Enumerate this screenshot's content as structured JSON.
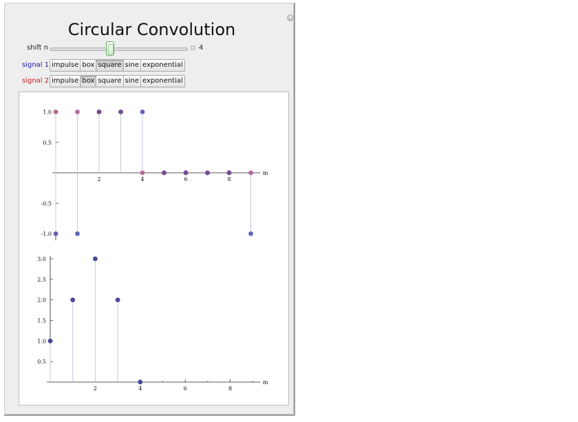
{
  "title": "Circular Convolution",
  "controls": {
    "shift_label": "shift n",
    "shift_value": "4",
    "shift_position": 0.44,
    "signal1_label": "signal 1",
    "signal2_label": "signal 2",
    "signal_options": [
      "impulse",
      "box",
      "square",
      "sine",
      "exponential"
    ],
    "signal1_selected": "square",
    "signal2_selected": "box"
  },
  "colors": {
    "signal1": "#1a1aa8",
    "signal2": "#c02020",
    "points_signal1": "#5c5cb4",
    "points_signal2": "#b46496",
    "points_overlap": "#7a4a8e",
    "points_result": "#3e3e96",
    "stem": "#c8c8dc"
  },
  "chart_data": [
    {
      "type": "scatter",
      "title": "",
      "xlabel": "m",
      "ylabel": "",
      "xlim": [
        0,
        9.4
      ],
      "ylim": [
        -1.0,
        1.0
      ],
      "xticks": [
        "2",
        "4",
        "6",
        "8"
      ],
      "yticks": [
        "1.0",
        "0.5",
        "-0.5",
        "-1.0"
      ],
      "series": [
        {
          "values": [
            [
              0,
              -1
            ],
            [
              1,
              -1
            ],
            [
              2,
              1
            ],
            [
              3,
              1
            ],
            [
              4,
              1
            ],
            [
              5,
              0
            ],
            [
              6,
              0
            ],
            [
              7,
              0
            ],
            [
              8,
              0
            ],
            [
              9,
              -1
            ]
          ]
        },
        {
          "values": [
            [
              0,
              1
            ],
            [
              1,
              1
            ],
            [
              2,
              1
            ],
            [
              3,
              1
            ],
            [
              4,
              0
            ],
            [
              5,
              0
            ],
            [
              6,
              0
            ],
            [
              7,
              0
            ],
            [
              8,
              0
            ],
            [
              9,
              0
            ]
          ]
        }
      ]
    },
    {
      "type": "scatter",
      "title": "",
      "xlabel": "m",
      "ylabel": "",
      "xlim": [
        0,
        9.4
      ],
      "ylim": [
        0,
        3.0
      ],
      "xticks": [
        "2",
        "4",
        "6",
        "8"
      ],
      "yticks": [
        "3.0",
        "2.5",
        "2.0",
        "1.5",
        "1.0",
        "0.5"
      ],
      "series": [
        {
          "values": [
            [
              0,
              1
            ],
            [
              1,
              2
            ],
            [
              2,
              3
            ],
            [
              3,
              2
            ],
            [
              4,
              0
            ]
          ]
        }
      ]
    }
  ]
}
